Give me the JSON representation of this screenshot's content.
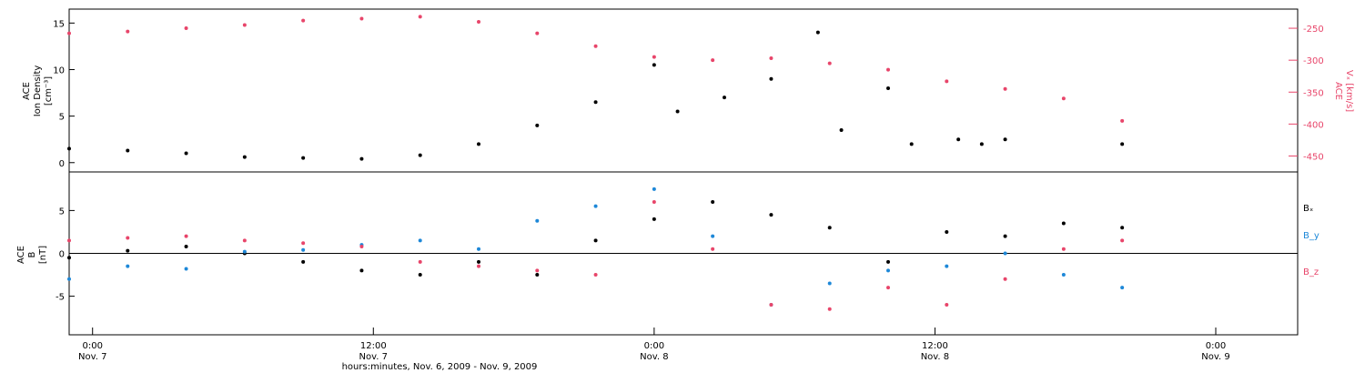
{
  "footer": {
    "xlabel": "hours:minutes, Nov. 6, 2009 - Nov. 9, 2009"
  },
  "colors": {
    "black": "#000000",
    "red": "#e8456a",
    "blue": "#1e88d8"
  },
  "chart_data": [
    {
      "type": "scatter",
      "panel": "top",
      "ylabel_left": [
        "ACE",
        "Ion Density",
        "[cm⁻³]"
      ],
      "ylabel_right": [
        "ACE",
        "Vₓ [km/s]"
      ],
      "ylim_left": [
        -1,
        16.5
      ],
      "ylim_right": [
        -475,
        -220
      ],
      "yticks_left": [
        0,
        5,
        10,
        15
      ],
      "yticks_right": [
        -250,
        -300,
        -350,
        -400,
        -450
      ],
      "series": [
        {
          "color": "black",
          "axis": "left",
          "x": [
            0,
            0.25,
            0.5,
            0.75,
            1.0,
            1.25,
            1.5,
            1.75,
            2.0,
            2.25,
            2.5,
            2.6,
            2.8,
            3.0,
            3.2,
            3.3,
            3.5,
            3.6,
            3.8,
            3.9,
            4.0,
            4.5
          ],
          "y": [
            1.5,
            1.3,
            1.0,
            0.6,
            0.5,
            0.4,
            0.8,
            2.0,
            4.0,
            6.5,
            10.5,
            5.5,
            7.0,
            9.0,
            14.0,
            3.5,
            8.0,
            2.0,
            2.5,
            2.0,
            2.5,
            2.0
          ]
        },
        {
          "color": "red",
          "axis": "right",
          "x": [
            0,
            0.25,
            0.5,
            0.75,
            1.0,
            1.25,
            1.5,
            1.75,
            2.0,
            2.25,
            2.5,
            2.75,
            3.0,
            3.25,
            3.5,
            3.75,
            4.0,
            4.25,
            4.5
          ],
          "y": [
            -258,
            -255,
            -250,
            -245,
            -238,
            -235,
            -232,
            -240,
            -258,
            -278,
            -295,
            -300,
            -297,
            -305,
            -315,
            -333,
            -345,
            -360,
            -395
          ]
        }
      ]
    },
    {
      "type": "scatter",
      "panel": "bottom",
      "ylabel_left": [
        "ACE",
        "B",
        "[nT]"
      ],
      "ylim": [
        -9.5,
        9.5
      ],
      "yticks": [
        -5,
        0,
        5
      ],
      "legend": [
        "Bₓ",
        "B_y",
        "B_z"
      ],
      "series": [
        {
          "name": "Bₓ",
          "color": "black",
          "x": [
            0,
            0.25,
            0.5,
            0.75,
            1.0,
            1.25,
            1.5,
            1.75,
            2.0,
            2.25,
            2.5,
            2.75,
            3.0,
            3.25,
            3.5,
            3.75,
            4.0,
            4.25,
            4.5
          ],
          "y": [
            -0.5,
            0.3,
            0.8,
            0.0,
            -1.0,
            -2.0,
            -2.5,
            -1.0,
            -2.5,
            1.5,
            4.0,
            6.0,
            4.5,
            3.0,
            -1.0,
            2.5,
            2.0,
            3.5,
            3.0
          ]
        },
        {
          "name": "B_y",
          "color": "blue",
          "x": [
            0,
            0.25,
            0.5,
            0.75,
            1.0,
            1.25,
            1.5,
            1.75,
            2.0,
            2.25,
            2.5,
            2.75,
            3.0,
            3.25,
            3.5,
            3.75,
            4.0,
            4.25,
            4.5
          ],
          "y": [
            -3.0,
            -1.5,
            -1.8,
            0.2,
            0.4,
            1.0,
            1.5,
            0.5,
            3.8,
            5.5,
            7.5,
            2.0,
            -6.0,
            -3.5,
            -2.0,
            -1.5,
            0.0,
            -2.5,
            -4.0
          ]
        },
        {
          "name": "B_z",
          "color": "red",
          "x": [
            0,
            0.25,
            0.5,
            0.75,
            1.0,
            1.25,
            1.5,
            1.75,
            2.0,
            2.25,
            2.5,
            2.75,
            3.0,
            3.25,
            3.5,
            3.75,
            4.0,
            4.25,
            4.5
          ],
          "y": [
            1.5,
            1.8,
            2.0,
            1.5,
            1.2,
            0.8,
            -1.0,
            -1.5,
            -2.0,
            -2.5,
            6.0,
            0.5,
            -6.0,
            -6.5,
            -4.0,
            -6.0,
            -3.0,
            0.5,
            1.5
          ]
        }
      ]
    }
  ],
  "xaxis": {
    "xlim": [
      0,
      5.25
    ],
    "major_ticks": [
      {
        "x": 0.1,
        "time": "0:00",
        "date": "Nov. 7"
      },
      {
        "x": 1.3,
        "time": "12:00",
        "date": "Nov. 7"
      },
      {
        "x": 2.5,
        "time": "0:00",
        "date": "Nov. 8"
      },
      {
        "x": 3.7,
        "time": "12:00",
        "date": "Nov. 8"
      },
      {
        "x": 4.9,
        "time": "0:00",
        "date": "Nov. 9"
      }
    ]
  }
}
